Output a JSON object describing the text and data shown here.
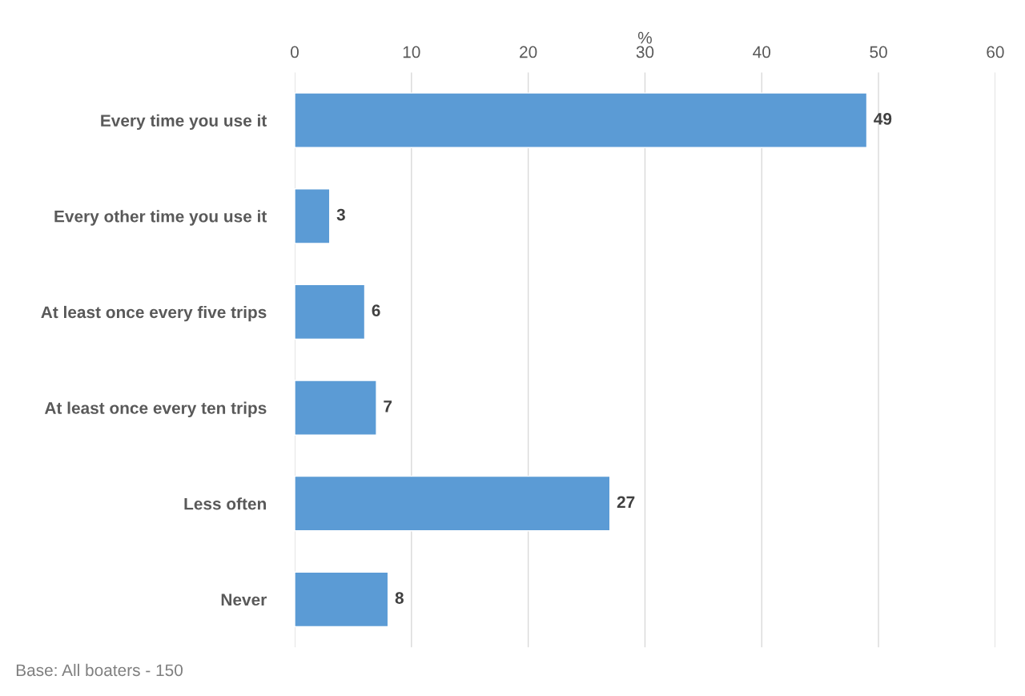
{
  "chart_data": {
    "type": "bar",
    "orientation": "horizontal",
    "xlabel": "%",
    "categories": [
      "Every time you use it",
      "Every other time you use it",
      "At least once every five trips",
      "At least once every ten trips",
      "Less often",
      "Never"
    ],
    "values": [
      49,
      3,
      6,
      7,
      27,
      8
    ],
    "color": "#5b9bd5",
    "xlim": [
      0,
      60
    ],
    "xticks": [
      0,
      10,
      20,
      30,
      40,
      50,
      60
    ],
    "grid": "x",
    "data_labels": true,
    "annotations": [
      "Base: All boaters - 150"
    ]
  }
}
